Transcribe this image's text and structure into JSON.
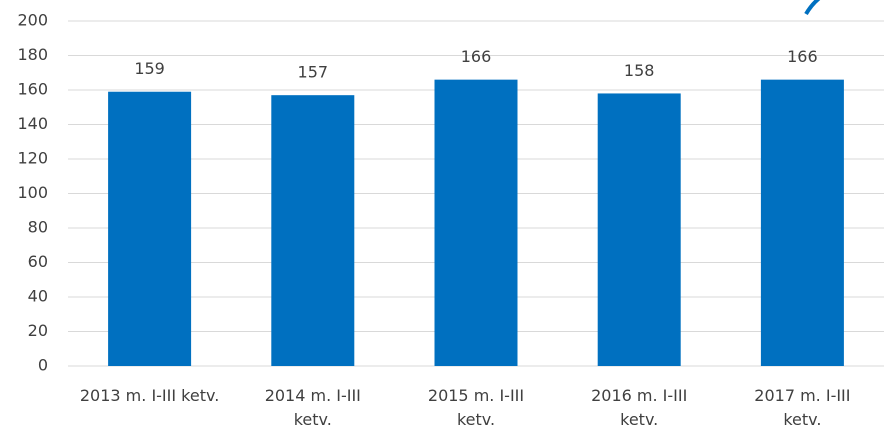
{
  "chart_data": {
    "type": "bar",
    "categories": [
      "2013 m. I-III ketv.",
      "2014 m.  I-III ketv.",
      "2015 m.  I-III ketv.",
      "2016 m.  I-III ketv.",
      "2017 m.  I-III ketv."
    ],
    "values": [
      159,
      157,
      166,
      158,
      166
    ],
    "color": "#0070c0",
    "ylim": [
      0,
      200
    ],
    "yticks": [
      0,
      20,
      40,
      60,
      80,
      100,
      120,
      140,
      160,
      180,
      200
    ],
    "grid": true
  }
}
